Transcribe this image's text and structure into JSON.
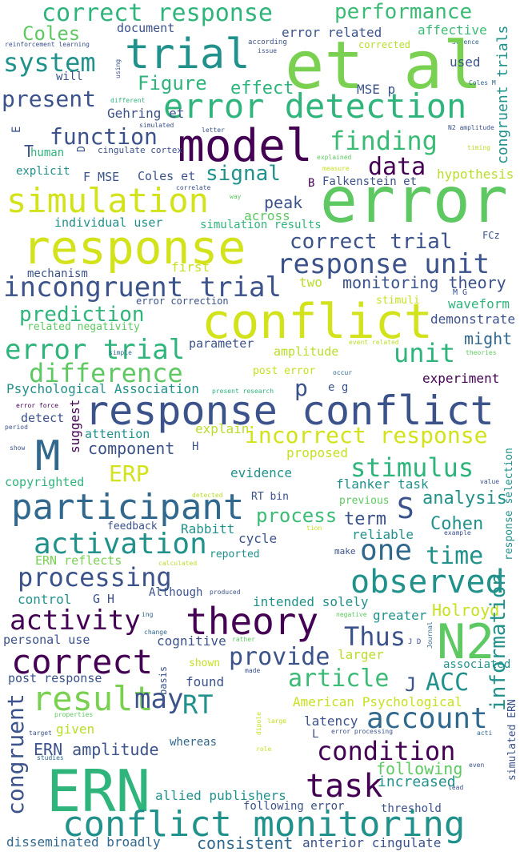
{
  "words": [
    {
      "text": "correct response",
      "color": "#2fb47c"
    },
    {
      "text": "performance",
      "color": "#3bbb75"
    },
    {
      "text": "Coles",
      "color": "#5ec962"
    },
    {
      "text": "document",
      "color": "#3b528b"
    },
    {
      "text": "error related",
      "color": "#3b528b"
    },
    {
      "text": "affective",
      "color": "#3bbb75"
    },
    {
      "text": "corrected",
      "color": "#b8de29"
    },
    {
      "text": "reinforcement learning",
      "color": "#3b528b"
    },
    {
      "text": "according",
      "color": "#3b528b"
    },
    {
      "text": "issue",
      "color": "#3b528b"
    },
    {
      "text": "Science",
      "color": "#31688e"
    },
    {
      "text": "trial",
      "color": "#21918c"
    },
    {
      "text": "et al",
      "color": "#7ad151"
    },
    {
      "text": "system",
      "color": "#21918c"
    },
    {
      "text": "using",
      "color": "#3b528b"
    },
    {
      "text": "will",
      "color": "#3b528b"
    },
    {
      "text": "used",
      "color": "#3b528b"
    },
    {
      "text": "Figure",
      "color": "#2fb47c"
    },
    {
      "text": "effect",
      "color": "#2fb47c"
    },
    {
      "text": "MSE p",
      "color": "#3b528b"
    },
    {
      "text": "Coles M",
      "color": "#31688e"
    },
    {
      "text": "present",
      "color": "#3b528b"
    },
    {
      "text": "different",
      "color": "#2fb47c"
    },
    {
      "text": "error detection",
      "color": "#2fb47c"
    },
    {
      "text": "Gehring et",
      "color": "#3b528b"
    },
    {
      "text": "simulated",
      "color": "#3b528b"
    },
    {
      "text": "letter",
      "color": "#3b528b"
    },
    {
      "text": "N2 amplitude",
      "color": "#3b528b"
    },
    {
      "text": "function",
      "color": "#3b528b"
    },
    {
      "text": "model",
      "color": "#440154"
    },
    {
      "text": "finding",
      "color": "#3bbb75"
    },
    {
      "text": "human",
      "color": "#2fb47c"
    },
    {
      "text": "cingulate cortex",
      "color": "#3b528b"
    },
    {
      "text": "timing",
      "color": "#b8de29"
    },
    {
      "text": "explained",
      "color": "#5ec962"
    },
    {
      "text": "measure",
      "color": "#c8e020"
    },
    {
      "text": "explicit",
      "color": "#21918c"
    },
    {
      "text": "data",
      "color": "#440154"
    },
    {
      "text": "hypothesis",
      "color": "#b8de29"
    },
    {
      "text": "F MSE",
      "color": "#3b528b"
    },
    {
      "text": "Coles et",
      "color": "#3b528b"
    },
    {
      "text": "signal",
      "color": "#21918c"
    },
    {
      "text": "B",
      "color": "#440154"
    },
    {
      "text": "Falkenstein et",
      "color": "#3b528b"
    },
    {
      "text": "correlate",
      "color": "#3b528b"
    },
    {
      "text": "way",
      "color": "#5ec962"
    },
    {
      "text": "simulation",
      "color": "#d2e21b"
    },
    {
      "text": "error",
      "color": "#5ec962"
    },
    {
      "text": "peak",
      "color": "#3b528b"
    },
    {
      "text": "across",
      "color": "#5ec962"
    },
    {
      "text": "individual user",
      "color": "#21918c"
    },
    {
      "text": "simulation results",
      "color": "#2fb47c"
    },
    {
      "text": "response",
      "color": "#d2e21b"
    },
    {
      "text": "correct trial",
      "color": "#3b528b"
    },
    {
      "text": "FCz",
      "color": "#3b528b"
    },
    {
      "text": "response unit",
      "color": "#3b528b"
    },
    {
      "text": "first",
      "color": "#c8e020"
    },
    {
      "text": "mechanism",
      "color": "#3b528b"
    },
    {
      "text": "incongruent trial",
      "color": "#3b528b"
    },
    {
      "text": "two",
      "color": "#b8de29"
    },
    {
      "text": "monitoring theory",
      "color": "#3b528b"
    },
    {
      "text": "M G",
      "color": "#3b528b"
    },
    {
      "text": "error correction",
      "color": "#3b528b"
    },
    {
      "text": "stimuli",
      "color": "#c8e020"
    },
    {
      "text": "waveform",
      "color": "#2fb47c"
    },
    {
      "text": "prediction",
      "color": "#2fb47c"
    },
    {
      "text": "conflict",
      "color": "#d2e21b"
    },
    {
      "text": "demonstrate",
      "color": "#3b528b"
    },
    {
      "text": "related negativity",
      "color": "#5ec962"
    },
    {
      "text": "might",
      "color": "#31688e"
    },
    {
      "text": "error trial",
      "color": "#2fb47c"
    },
    {
      "text": "parameter",
      "color": "#3b528b"
    },
    {
      "text": "event related",
      "color": "#b8de29"
    },
    {
      "text": "simple",
      "color": "#31688e"
    },
    {
      "text": "unit",
      "color": "#2fb47c"
    },
    {
      "text": "amplitude",
      "color": "#b8de29"
    },
    {
      "text": "theories",
      "color": "#5ec962"
    },
    {
      "text": "difference",
      "color": "#5ec962"
    },
    {
      "text": "post error",
      "color": "#c8e020"
    },
    {
      "text": "occur",
      "color": "#31688e"
    },
    {
      "text": "experiment",
      "color": "#440154"
    },
    {
      "text": "Psychological Association",
      "color": "#21918c"
    },
    {
      "text": "present research",
      "color": "#2fb47c"
    },
    {
      "text": "p",
      "color": "#3b528b"
    },
    {
      "text": "e g",
      "color": "#3b528b"
    },
    {
      "text": "error force",
      "color": "#440154"
    },
    {
      "text": "period",
      "color": "#3b528b"
    },
    {
      "text": "detect",
      "color": "#3b528b"
    },
    {
      "text": "suggest",
      "color": "#440154"
    },
    {
      "text": "response conflict",
      "color": "#3b528b"
    },
    {
      "text": "attention",
      "color": "#21918c"
    },
    {
      "text": "explain",
      "color": "#b8de29"
    },
    {
      "text": "incorrect response",
      "color": "#d2e21b"
    },
    {
      "text": "show",
      "color": "#3b528b"
    },
    {
      "text": "M",
      "color": "#31688e"
    },
    {
      "text": "component",
      "color": "#3b528b"
    },
    {
      "text": "H",
      "color": "#3b528b"
    },
    {
      "text": "proposed",
      "color": "#c8e020"
    },
    {
      "text": "stimulus",
      "color": "#2fb47c"
    },
    {
      "text": "response selection",
      "color": "#21918c"
    },
    {
      "text": "ERP",
      "color": "#d2e21b"
    },
    {
      "text": "evidence",
      "color": "#21918c"
    },
    {
      "text": "flanker task",
      "color": "#21918c"
    },
    {
      "text": "value",
      "color": "#3b528b"
    },
    {
      "text": "copyrighted",
      "color": "#2fb47c"
    },
    {
      "text": "previous",
      "color": "#5ec962"
    },
    {
      "text": "participant",
      "color": "#31688e"
    },
    {
      "text": "analysis",
      "color": "#21918c"
    },
    {
      "text": "S",
      "color": "#3b528b"
    },
    {
      "text": "RT bin",
      "color": "#3b528b"
    },
    {
      "text": "process",
      "color": "#3bbb75"
    },
    {
      "text": "term",
      "color": "#3b528b"
    },
    {
      "text": "Cohen",
      "color": "#21918c"
    },
    {
      "text": "detected",
      "color": "#b8de29"
    },
    {
      "text": "feedback",
      "color": "#3b528b"
    },
    {
      "text": "Rabbitt",
      "color": "#21918c"
    },
    {
      "text": "cycle",
      "color": "#3b528b"
    },
    {
      "text": "tion",
      "color": "#c8e020"
    },
    {
      "text": "reliable",
      "color": "#21918c"
    },
    {
      "text": "example",
      "color": "#3b528b"
    },
    {
      "text": "activation",
      "color": "#21918c"
    },
    {
      "text": "one",
      "color": "#31688e"
    },
    {
      "text": "time",
      "color": "#21918c"
    },
    {
      "text": "ERN reflects",
      "color": "#7ad151"
    },
    {
      "text": "reported",
      "color": "#21918c"
    },
    {
      "text": "make",
      "color": "#3b528b"
    },
    {
      "text": "calculated",
      "color": "#b8de29"
    },
    {
      "text": "processing",
      "color": "#3b528b"
    },
    {
      "text": "observed",
      "color": "#21918c"
    },
    {
      "text": "control",
      "color": "#21918c"
    },
    {
      "text": "G H",
      "color": "#3b528b"
    },
    {
      "text": "Although",
      "color": "#3b528b"
    },
    {
      "text": "produced",
      "color": "#3b528b"
    },
    {
      "text": "intended solely",
      "color": "#21918c"
    },
    {
      "text": "Holroyd",
      "color": "#c8e020"
    },
    {
      "text": "activity",
      "color": "#440154"
    },
    {
      "text": "theory",
      "color": "#440154"
    },
    {
      "text": "ing",
      "color": "#31688e"
    },
    {
      "text": "negative",
      "color": "#5ec962"
    },
    {
      "text": "greater",
      "color": "#21918c"
    },
    {
      "text": "change",
      "color": "#31688e"
    },
    {
      "text": "rather",
      "color": "#5ec962"
    },
    {
      "text": "personal use",
      "color": "#3b528b"
    },
    {
      "text": "cognitive",
      "color": "#3b528b"
    },
    {
      "text": "Thus",
      "color": "#3b528b"
    },
    {
      "text": "Journal",
      "color": "#31688e"
    },
    {
      "text": "J D",
      "color": "#3b528b"
    },
    {
      "text": "N2",
      "color": "#5ec962"
    },
    {
      "text": "information",
      "color": "#21918c"
    },
    {
      "text": "correct",
      "color": "#440154"
    },
    {
      "text": "provide",
      "color": "#3b528b"
    },
    {
      "text": "larger",
      "color": "#b8de29"
    },
    {
      "text": "associated",
      "color": "#21918c"
    },
    {
      "text": "shown",
      "color": "#c8e020"
    },
    {
      "text": "made",
      "color": "#3b528b"
    },
    {
      "text": "basis",
      "color": "#3b528b"
    },
    {
      "text": "post response",
      "color": "#3b528b"
    },
    {
      "text": "found",
      "color": "#3b528b"
    },
    {
      "text": "article",
      "color": "#3bbb75"
    },
    {
      "text": "J",
      "color": "#3b528b"
    },
    {
      "text": "ACC",
      "color": "#21918c"
    },
    {
      "text": "result",
      "color": "#7ad151"
    },
    {
      "text": "RT",
      "color": "#21918c"
    },
    {
      "text": "American Psychological",
      "color": "#c8e020"
    },
    {
      "text": "congruent",
      "color": "#3b528b"
    },
    {
      "text": "properties",
      "color": "#5ec962"
    },
    {
      "text": "may",
      "color": "#3b528b"
    },
    {
      "text": "latency",
      "color": "#3b528b"
    },
    {
      "text": "account",
      "color": "#31688e"
    },
    {
      "text": "simulated ERN",
      "color": "#3b528b"
    },
    {
      "text": "given",
      "color": "#b8de29"
    },
    {
      "text": "dipole",
      "color": "#c8e020"
    },
    {
      "text": "large",
      "color": "#c8e020"
    },
    {
      "text": "L",
      "color": "#3b528b"
    },
    {
      "text": "error processing",
      "color": "#3b528b"
    },
    {
      "text": "acti",
      "color": "#31688e"
    },
    {
      "text": "target",
      "color": "#3b528b"
    },
    {
      "text": "ERN amplitude",
      "color": "#3b528b"
    },
    {
      "text": "whereas",
      "color": "#31688e"
    },
    {
      "text": "condition",
      "color": "#440154"
    },
    {
      "text": "studies",
      "color": "#31688e"
    },
    {
      "text": "role",
      "color": "#c8e020"
    },
    {
      "text": "following",
      "color": "#5ec962"
    },
    {
      "text": "even",
      "color": "#3b528b"
    },
    {
      "text": "ERN",
      "color": "#2fb47c"
    },
    {
      "text": "task",
      "color": "#440154"
    },
    {
      "text": "increased",
      "color": "#21918c"
    },
    {
      "text": "lead",
      "color": "#3b528b"
    },
    {
      "text": "allied publishers",
      "color": "#21918c"
    },
    {
      "text": "following error",
      "color": "#3b528b"
    },
    {
      "text": "threshold",
      "color": "#3b528b"
    },
    {
      "text": "conflict monitoring",
      "color": "#21918c"
    },
    {
      "text": "disseminated broadly",
      "color": "#31688e"
    },
    {
      "text": "consistent",
      "color": "#31688e"
    },
    {
      "text": "anterior cingulate",
      "color": "#3b528b"
    },
    {
      "text": "congruent trials",
      "color": "#21918c"
    },
    {
      "text": "E",
      "color": "#3b528b"
    },
    {
      "text": "D",
      "color": "#3b528b"
    },
    {
      "text": "T",
      "color": "#3b528b"
    }
  ]
}
